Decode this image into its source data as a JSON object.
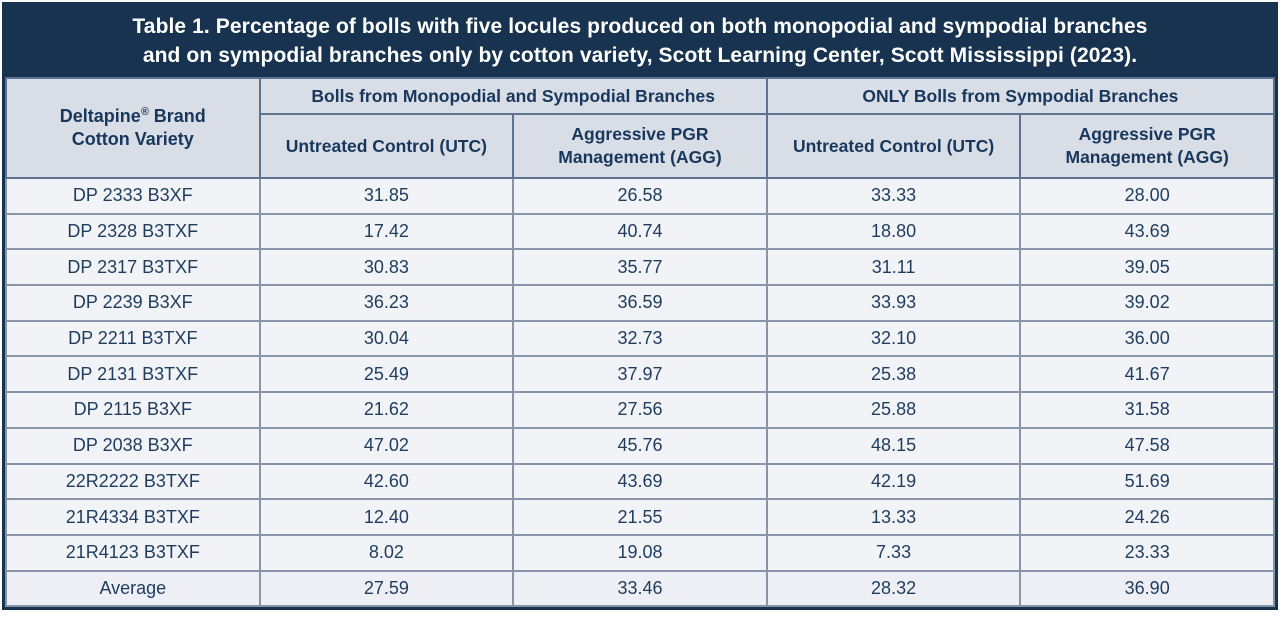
{
  "title": {
    "line1": "Table 1. Percentage of bolls with five locules produced on both monopodial and sympodial branches",
    "line2": "and on sympodial branches only by cotton variety, Scott Learning Center, Scott Mississippi (2023)."
  },
  "header": {
    "variety_brand": "Deltapine",
    "variety_reg": "®",
    "variety_brand_suffix": " Brand",
    "variety_line2": "Cotton Variety",
    "sub": [
      "Untreated Control (UTC)",
      "Aggressive PGR Management (AGG)",
      "Untreated Control (UTC)",
      "Aggressive PGR Management (AGG)"
    ]
  },
  "chart_data": {
    "type": "table",
    "title": "Table 1. Percentage of bolls with five locules produced on both monopodial and sympodial branches and on sympodial branches only by cotton variety, Scott Learning Center, Scott Mississippi (2023).",
    "column_groups": [
      "Bolls from Monopodial and Sympodial Branches",
      "ONLY Bolls from Sympodial Branches"
    ],
    "columns": [
      "Deltapine® Brand Cotton Variety",
      "Untreated Control (UTC)",
      "Aggressive PGR Management (AGG)",
      "Untreated Control (UTC)",
      "Aggressive PGR Management (AGG)"
    ],
    "rows": [
      {
        "variety": "DP 2333 B3XF",
        "values": [
          "31.85",
          "26.58",
          "33.33",
          "28.00"
        ]
      },
      {
        "variety": "DP 2328 B3TXF",
        "values": [
          "17.42",
          "40.74",
          "18.80",
          "43.69"
        ]
      },
      {
        "variety": "DP 2317 B3TXF",
        "values": [
          "30.83",
          "35.77",
          "31.11",
          "39.05"
        ]
      },
      {
        "variety": "DP 2239 B3XF",
        "values": [
          "36.23",
          "36.59",
          "33.93",
          "39.02"
        ]
      },
      {
        "variety": "DP 2211 B3TXF",
        "values": [
          "30.04",
          "32.73",
          "32.10",
          "36.00"
        ]
      },
      {
        "variety": "DP 2131 B3TXF",
        "values": [
          "25.49",
          "37.97",
          "25.38",
          "41.67"
        ]
      },
      {
        "variety": "DP 2115 B3XF",
        "values": [
          "21.62",
          "27.56",
          "25.88",
          "31.58"
        ]
      },
      {
        "variety": "DP 2038 B3XF",
        "values": [
          "47.02",
          "45.76",
          "48.15",
          "47.58"
        ]
      },
      {
        "variety": "22R2222 B3TXF",
        "values": [
          "42.60",
          "43.69",
          "42.19",
          "51.69"
        ]
      },
      {
        "variety": "21R4334 B3TXF",
        "values": [
          "12.40",
          "21.55",
          "13.33",
          "24.26"
        ]
      },
      {
        "variety": "21R4123 B3TXF",
        "values": [
          "8.02",
          "19.08",
          "7.33",
          "23.33"
        ]
      },
      {
        "variety": "Average",
        "values": [
          "27.59",
          "33.46",
          "28.32",
          "36.90"
        ]
      }
    ]
  },
  "colors": {
    "navy": "#17334f",
    "header_bg": "#d9dde6",
    "row_bg": "#f2f3f7",
    "header_text": "#17375c",
    "cell_text": "#1e3c5e",
    "border_internal": "#8695a9",
    "title_text": "#ffffff"
  }
}
